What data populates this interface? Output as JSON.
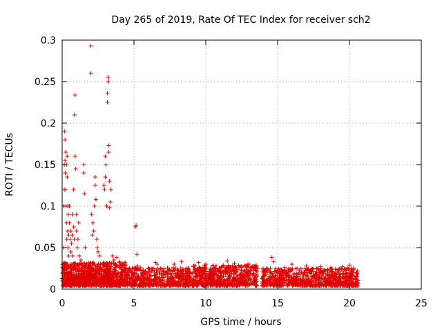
{
  "chart_data": {
    "type": "scatter",
    "title": "Day 265 of 2019, Rate Of TEC Index for receiver sch2",
    "xlabel": "GPS time / hours",
    "ylabel": "ROTI / TECUs",
    "xlim": [
      0,
      25
    ],
    "ylim": [
      0,
      0.3
    ],
    "xticks": [
      0,
      5,
      10,
      15,
      20,
      25
    ],
    "yticks": [
      0,
      0.05,
      0.1,
      0.15,
      0.2,
      0.25,
      0.3
    ],
    "xtick_labels": [
      "0",
      "5",
      "10",
      "15",
      "20",
      "25"
    ],
    "ytick_labels": [
      "0",
      "0.05",
      "0.1",
      "0.15",
      "0.2",
      "0.25",
      "0.3"
    ],
    "grid": true,
    "marker": "+",
    "color": "#e00000",
    "series": [
      {
        "name": "ROTI",
        "points": [
          [
            0.05,
            0.02
          ],
          [
            0.1,
            0.03
          ],
          [
            0.1,
            0.05
          ],
          [
            0.12,
            0.1
          ],
          [
            0.15,
            0.12
          ],
          [
            0.15,
            0.15
          ],
          [
            0.18,
            0.19
          ],
          [
            0.2,
            0.18
          ],
          [
            0.2,
            0.155
          ],
          [
            0.22,
            0.14
          ],
          [
            0.25,
            0.165
          ],
          [
            0.25,
            0.12
          ],
          [
            0.28,
            0.1
          ],
          [
            0.3,
            0.08
          ],
          [
            0.3,
            0.15
          ],
          [
            0.32,
            0.06
          ],
          [
            0.35,
            0.16
          ],
          [
            0.35,
            0.135
          ],
          [
            0.38,
            0.07
          ],
          [
            0.4,
            0.1
          ],
          [
            0.4,
            0.05
          ],
          [
            0.42,
            0.09
          ],
          [
            0.45,
            0.065
          ],
          [
            0.45,
            0.04
          ],
          [
            0.5,
            0.08
          ],
          [
            0.5,
            0.1
          ],
          [
            0.55,
            0.06
          ],
          [
            0.55,
            0.03
          ],
          [
            0.6,
            0.07
          ],
          [
            0.6,
            0.045
          ],
          [
            0.65,
            0.055
          ],
          [
            0.7,
            0.065
          ],
          [
            0.7,
            0.09
          ],
          [
            0.75,
            0.04
          ],
          [
            0.8,
            0.075
          ],
          [
            0.8,
            0.12
          ],
          [
            0.85,
            0.21
          ],
          [
            0.85,
            0.06
          ],
          [
            0.9,
            0.234
          ],
          [
            0.9,
            0.16
          ],
          [
            0.95,
            0.145
          ],
          [
            1.0,
            0.09
          ],
          [
            1.0,
            0.07
          ],
          [
            1.05,
            0.05
          ],
          [
            1.1,
            0.06
          ],
          [
            1.15,
            0.08
          ],
          [
            1.2,
            0.04
          ],
          [
            1.3,
            0.035
          ],
          [
            1.4,
            0.03
          ],
          [
            1.5,
            0.15
          ],
          [
            1.5,
            0.14
          ],
          [
            1.55,
            0.115
          ],
          [
            1.6,
            0.05
          ],
          [
            2.0,
            0.293
          ],
          [
            2.0,
            0.26
          ],
          [
            2.05,
            0.09
          ],
          [
            2.1,
            0.065
          ],
          [
            2.15,
            0.08
          ],
          [
            2.2,
            0.07
          ],
          [
            2.25,
            0.1
          ],
          [
            2.3,
            0.125
          ],
          [
            2.3,
            0.135
          ],
          [
            2.35,
            0.108
          ],
          [
            2.4,
            0.06
          ],
          [
            2.45,
            0.05
          ],
          [
            2.5,
            0.045
          ],
          [
            2.6,
            0.04
          ],
          [
            2.9,
            0.125
          ],
          [
            2.95,
            0.12
          ],
          [
            3.0,
            0.135
          ],
          [
            3.0,
            0.16
          ],
          [
            3.05,
            0.15
          ],
          [
            3.1,
            0.1
          ],
          [
            3.15,
            0.225
          ],
          [
            3.15,
            0.236
          ],
          [
            3.2,
            0.25
          ],
          [
            3.2,
            0.255
          ],
          [
            3.25,
            0.165
          ],
          [
            3.25,
            0.173
          ],
          [
            3.3,
            0.13
          ],
          [
            3.3,
            0.098
          ],
          [
            3.35,
            0.105
          ],
          [
            3.4,
            0.12
          ],
          [
            3.5,
            0.04
          ],
          [
            3.6,
            0.035
          ],
          [
            3.8,
            0.038
          ],
          [
            4.0,
            0.033
          ],
          [
            5.1,
            0.075
          ],
          [
            5.15,
            0.077
          ],
          [
            5.2,
            0.042
          ],
          [
            5.25,
            0.028
          ],
          [
            6.5,
            0.032
          ],
          [
            6.6,
            0.03
          ],
          [
            7.8,
            0.03
          ],
          [
            8.3,
            0.033
          ],
          [
            9.5,
            0.032
          ],
          [
            10.0,
            0.03
          ],
          [
            10.5,
            0.028
          ],
          [
            11.5,
            0.034
          ],
          [
            12.0,
            0.031
          ],
          [
            12.5,
            0.027
          ],
          [
            13.0,
            0.03
          ],
          [
            13.5,
            0.022
          ],
          [
            14.5,
            0.025
          ],
          [
            14.6,
            0.038
          ],
          [
            14.7,
            0.033
          ],
          [
            15.5,
            0.026
          ],
          [
            16.0,
            0.03
          ],
          [
            17.0,
            0.028
          ],
          [
            18.0,
            0.027
          ],
          [
            18.7,
            0.026
          ],
          [
            19.5,
            0.027
          ],
          [
            20.0,
            0.029
          ],
          [
            20.3,
            0.025
          ]
        ],
        "bands": [
          {
            "x_from": 0.0,
            "x_to": 4.5,
            "y_from": 0.004,
            "y_to": 0.032,
            "per_hour": 220
          },
          {
            "x_from": 4.5,
            "x_to": 9.0,
            "y_from": 0.004,
            "y_to": 0.026,
            "per_hour": 120
          },
          {
            "x_from": 9.0,
            "x_to": 13.6,
            "y_from": 0.004,
            "y_to": 0.029,
            "per_hour": 140
          },
          {
            "x_from": 13.9,
            "x_to": 20.6,
            "y_from": 0.004,
            "y_to": 0.025,
            "per_hour": 120
          }
        ]
      }
    ]
  }
}
